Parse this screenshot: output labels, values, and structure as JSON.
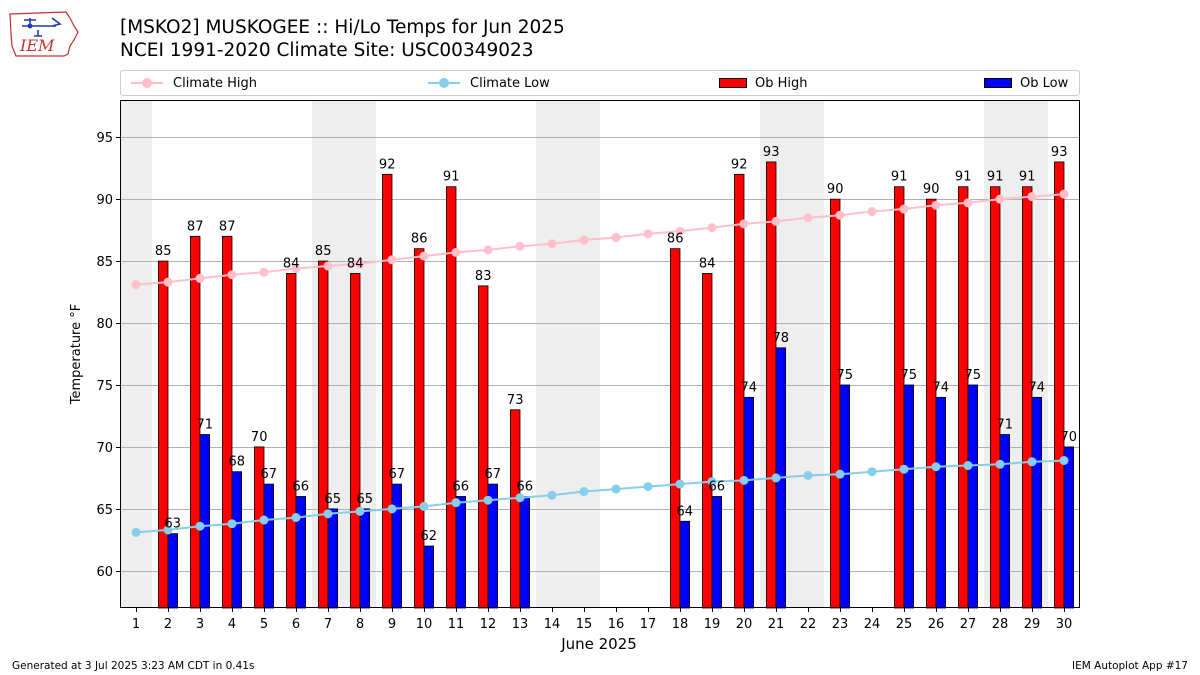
{
  "logo": {
    "text": "IEM"
  },
  "header": {
    "title_line1": "[MSKO2] MUSKOGEE :: Hi/Lo Temps for Jun 2025",
    "title_line2": "NCEI 1991-2020 Climate Site: USC00349023"
  },
  "legend": {
    "climate_high": "Climate High",
    "climate_low": "Climate Low",
    "ob_high": "Ob High",
    "ob_low": "Ob Low"
  },
  "colors": {
    "ob_high": "#ff0000",
    "ob_low": "#0000ff",
    "climate_high": "#ffc0cb",
    "climate_low": "#87ceeb",
    "weekend_shade": "#eeeeee"
  },
  "chart_data": {
    "type": "bar",
    "title": "[MSKO2] MUSKOGEE :: Hi/Lo Temps for Jun 2025",
    "xlabel": "June 2025",
    "ylabel": "Temperature °F",
    "ylim": [
      57,
      98
    ],
    "yticks": [
      60,
      65,
      70,
      75,
      80,
      85,
      90,
      95
    ],
    "grid": "y",
    "legend_position": "top",
    "categories": [
      "1",
      "2",
      "3",
      "4",
      "5",
      "6",
      "7",
      "8",
      "9",
      "10",
      "11",
      "12",
      "13",
      "14",
      "15",
      "16",
      "17",
      "18",
      "19",
      "20",
      "21",
      "22",
      "23",
      "24",
      "25",
      "26",
      "27",
      "28",
      "29",
      "30"
    ],
    "shaded_days": [
      1,
      7,
      8,
      14,
      15,
      21,
      22,
      28,
      29
    ],
    "series": [
      {
        "name": "Ob High",
        "type": "bar",
        "values": [
          null,
          85,
          87,
          87,
          70,
          84,
          85,
          84,
          92,
          86,
          91,
          83,
          73,
          null,
          null,
          null,
          null,
          86,
          84,
          92,
          93,
          null,
          90,
          null,
          91,
          90,
          91,
          91,
          91,
          93
        ]
      },
      {
        "name": "Ob Low",
        "type": "bar",
        "values": [
          null,
          63,
          71,
          68,
          67,
          66,
          65,
          65,
          67,
          62,
          66,
          67,
          66,
          null,
          null,
          null,
          null,
          64,
          66,
          74,
          78,
          null,
          75,
          null,
          75,
          74,
          75,
          71,
          74,
          70
        ]
      },
      {
        "name": "Climate High",
        "type": "line",
        "values": [
          83.1,
          83.3,
          83.6,
          83.9,
          84.1,
          84.4,
          84.6,
          84.8,
          85.1,
          85.4,
          85.7,
          85.9,
          86.2,
          86.4,
          86.7,
          86.9,
          87.2,
          87.4,
          87.7,
          88.0,
          88.2,
          88.5,
          88.7,
          89.0,
          89.2,
          89.5,
          89.7,
          90.0,
          90.2,
          90.4
        ]
      },
      {
        "name": "Climate Low",
        "type": "line",
        "values": [
          63.1,
          63.3,
          63.6,
          63.8,
          64.1,
          64.3,
          64.6,
          64.8,
          65.0,
          65.2,
          65.5,
          65.7,
          65.9,
          66.1,
          66.4,
          66.6,
          66.8,
          67.0,
          67.2,
          67.3,
          67.5,
          67.7,
          67.8,
          68.0,
          68.2,
          68.4,
          68.5,
          68.6,
          68.8,
          68.9
        ]
      }
    ]
  },
  "footer": {
    "left": "Generated at 3 Jul 2025 3:23 AM CDT in 0.41s",
    "right": "IEM Autoplot App #17"
  }
}
